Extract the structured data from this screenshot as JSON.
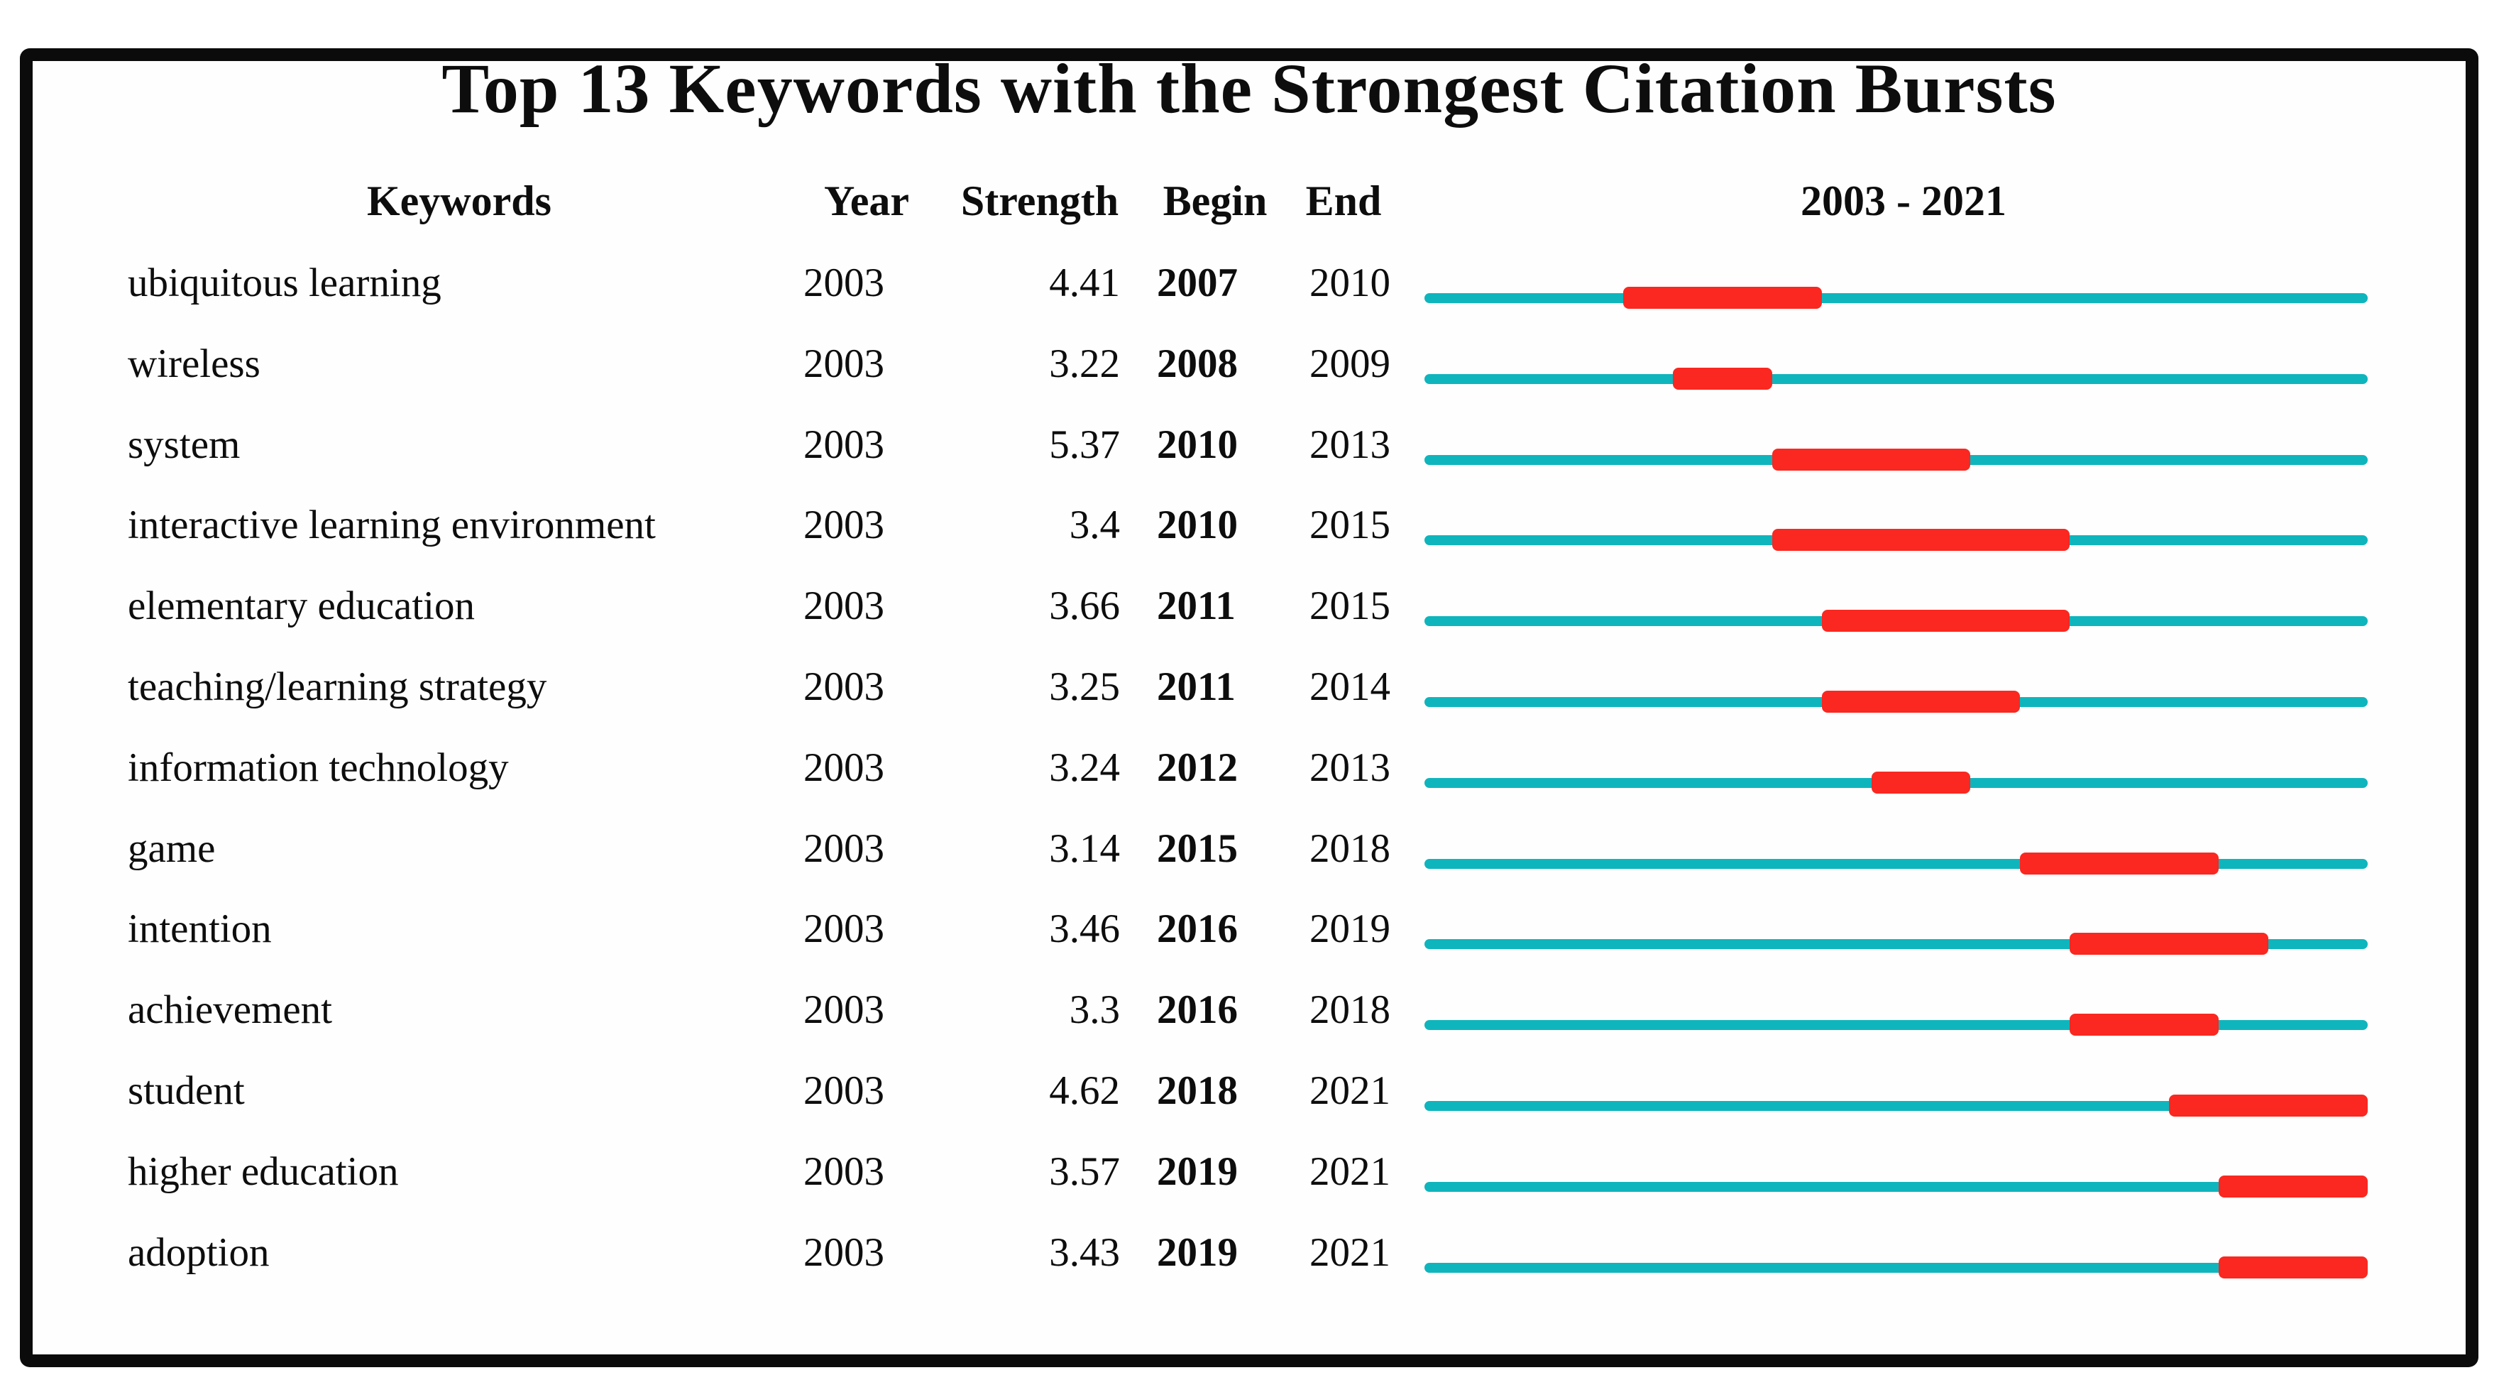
{
  "page": {
    "background": "#ffffff"
  },
  "colors": {
    "track_teal": "#0fb5bd",
    "burst_red": "#fa2820",
    "text": "#0d0d0d",
    "frame_border": "#0b0b0b",
    "background": "#ffffff"
  },
  "chart_data": {
    "type": "table",
    "title": "Top 13 Keywords with the Strongest Citation Bursts",
    "columns": [
      "Keywords",
      "Year",
      "Strength",
      "Begin",
      "End"
    ],
    "timeline_label": "2003 - 2021",
    "timeline": {
      "start_year": 2003,
      "end_year": 2021
    },
    "legend_position": "none",
    "grid": false,
    "rows": [
      {
        "keyword": "ubiquitous learning",
        "year": 2003,
        "strength": "4.41",
        "begin": 2007,
        "end": 2010
      },
      {
        "keyword": "wireless",
        "year": 2003,
        "strength": "3.22",
        "begin": 2008,
        "end": 2009
      },
      {
        "keyword": "system",
        "year": 2003,
        "strength": "5.37",
        "begin": 2010,
        "end": 2013
      },
      {
        "keyword": "interactive learning environment",
        "year": 2003,
        "strength": "3.4",
        "begin": 2010,
        "end": 2015
      },
      {
        "keyword": "elementary education",
        "year": 2003,
        "strength": "3.66",
        "begin": 2011,
        "end": 2015
      },
      {
        "keyword": "teaching/learning strategy",
        "year": 2003,
        "strength": "3.25",
        "begin": 2011,
        "end": 2014
      },
      {
        "keyword": "information technology",
        "year": 2003,
        "strength": "3.24",
        "begin": 2012,
        "end": 2013
      },
      {
        "keyword": "game",
        "year": 2003,
        "strength": "3.14",
        "begin": 2015,
        "end": 2018
      },
      {
        "keyword": "intention",
        "year": 2003,
        "strength": "3.46",
        "begin": 2016,
        "end": 2019
      },
      {
        "keyword": "achievement",
        "year": 2003,
        "strength": "3.3",
        "begin": 2016,
        "end": 2018
      },
      {
        "keyword": "student",
        "year": 2003,
        "strength": "4.62",
        "begin": 2018,
        "end": 2021
      },
      {
        "keyword": "higher education",
        "year": 2003,
        "strength": "3.57",
        "begin": 2019,
        "end": 2021
      },
      {
        "keyword": "adoption",
        "year": 2003,
        "strength": "3.43",
        "begin": 2019,
        "end": 2021
      }
    ]
  }
}
